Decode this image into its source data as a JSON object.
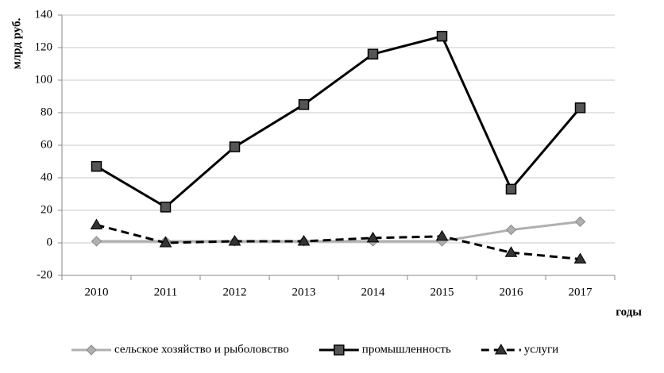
{
  "chart_data": {
    "type": "line",
    "y_label": "млрд руб.",
    "x_label": "годы",
    "categories": [
      "2010",
      "2011",
      "2012",
      "2013",
      "2014",
      "2015",
      "2016",
      "2017"
    ],
    "series": [
      {
        "name": "сельское хозяйство и рыболовство",
        "color": "#b0b0b0",
        "marker": "diamond",
        "dash": false,
        "values": [
          1,
          1,
          1,
          1,
          1,
          1,
          8,
          13
        ]
      },
      {
        "name": "промышленность",
        "color": "#000000",
        "marker": "square",
        "dash": false,
        "values": [
          47,
          22,
          59,
          85,
          116,
          127,
          33,
          83
        ]
      },
      {
        "name": "услуги",
        "color": "#000000",
        "marker": "triangle",
        "dash": true,
        "values": [
          11,
          0,
          1,
          1,
          3,
          4,
          -6,
          -10
        ]
      }
    ],
    "ylim": [
      -20,
      140
    ],
    "yticks": [
      -20,
      0,
      20,
      40,
      60,
      80,
      100,
      120,
      140
    ],
    "grid": true,
    "legend": "bottom"
  }
}
